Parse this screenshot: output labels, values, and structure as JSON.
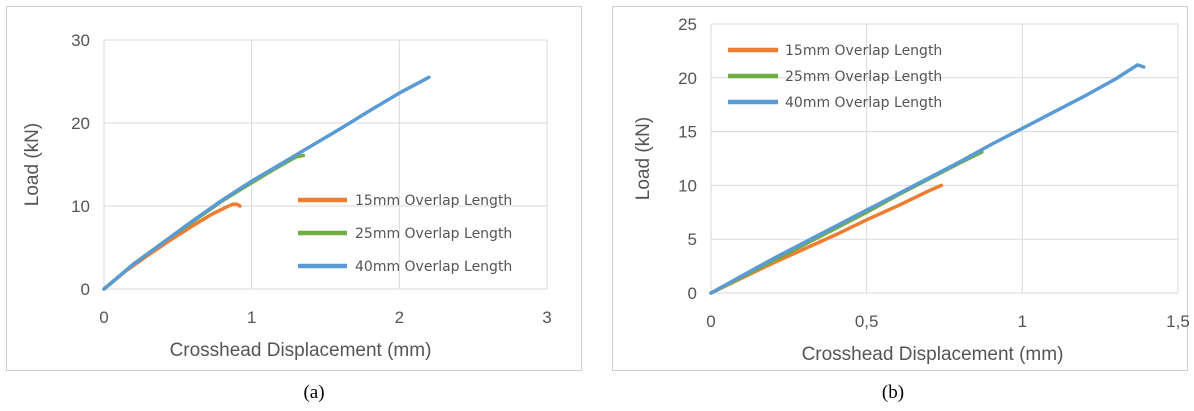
{
  "captions": [
    "(a)",
    "(b)"
  ],
  "chart_data": [
    {
      "type": "line",
      "xlabel": "Crosshead Displacement (mm)",
      "ylabel": "Load (kN)",
      "xlim": [
        0,
        3
      ],
      "ylim": [
        0,
        30
      ],
      "xticks": [
        0,
        1,
        2,
        3
      ],
      "xtick_labels": [
        "0",
        "1",
        "2",
        "3"
      ],
      "yticks": [
        0,
        10,
        20,
        30
      ],
      "ytick_labels": [
        "0",
        "10",
        "20",
        "30"
      ],
      "grid": true,
      "legend_position": "bottom-right",
      "series": [
        {
          "name": "15mm Overlap Length",
          "color": "#ED7D31",
          "x": [
            0,
            0.15,
            0.3,
            0.45,
            0.6,
            0.72,
            0.82,
            0.87,
            0.9,
            0.92
          ],
          "y": [
            0,
            2.2,
            4.1,
            5.9,
            7.6,
            8.9,
            9.8,
            10.2,
            10.2,
            10.0
          ]
        },
        {
          "name": "25mm Overlap Length",
          "color": "#70AD47",
          "x": [
            0,
            0.2,
            0.4,
            0.6,
            0.8,
            1.0,
            1.15,
            1.3,
            1.35
          ],
          "y": [
            0,
            3.0,
            5.6,
            8.1,
            10.6,
            12.8,
            14.4,
            15.9,
            16.1
          ]
        },
        {
          "name": "40mm Overlap Length",
          "color": "#5B9BD5",
          "x": [
            0,
            0.2,
            0.4,
            0.6,
            0.8,
            1.0,
            1.2,
            1.4,
            1.6,
            1.8,
            2.0,
            2.2
          ],
          "y": [
            0,
            3.0,
            5.6,
            8.2,
            10.7,
            13.0,
            15.1,
            17.2,
            19.3,
            21.5,
            23.6,
            25.5
          ]
        }
      ]
    },
    {
      "type": "line",
      "xlabel": "Crosshead Displacement (mm)",
      "ylabel": "Load (kN)",
      "xlim": [
        0,
        1.5
      ],
      "ylim": [
        0,
        25
      ],
      "xticks": [
        0,
        0.5,
        1,
        1.5
      ],
      "xtick_labels": [
        "0",
        "0,5",
        "1",
        "1,5"
      ],
      "yticks": [
        0,
        5,
        10,
        15,
        20,
        25
      ],
      "ytick_labels": [
        "0",
        "5",
        "10",
        "15",
        "20",
        "25"
      ],
      "grid": true,
      "legend_position": "top-left",
      "series": [
        {
          "name": "15mm Overlap Length",
          "color": "#ED7D31",
          "x": [
            0,
            0.1,
            0.2,
            0.3,
            0.4,
            0.5,
            0.6,
            0.7,
            0.74
          ],
          "y": [
            0,
            1.4,
            2.8,
            4.1,
            5.4,
            6.8,
            8.1,
            9.5,
            10.0
          ]
        },
        {
          "name": "25mm Overlap Length",
          "color": "#70AD47",
          "x": [
            0,
            0.1,
            0.2,
            0.3,
            0.4,
            0.5,
            0.6,
            0.7,
            0.8,
            0.87
          ],
          "y": [
            0,
            1.5,
            3.0,
            4.5,
            6.0,
            7.5,
            9.1,
            10.6,
            12.1,
            13.1
          ]
        },
        {
          "name": "40mm Overlap Length",
          "color": "#5B9BD5",
          "x": [
            0,
            0.1,
            0.2,
            0.3,
            0.4,
            0.5,
            0.6,
            0.7,
            0.8,
            0.9,
            1.0,
            1.1,
            1.2,
            1.3,
            1.37,
            1.39
          ],
          "y": [
            0,
            1.6,
            3.2,
            4.7,
            6.2,
            7.7,
            9.2,
            10.7,
            12.2,
            13.8,
            15.3,
            16.8,
            18.3,
            19.9,
            21.2,
            21.0
          ]
        }
      ]
    }
  ]
}
